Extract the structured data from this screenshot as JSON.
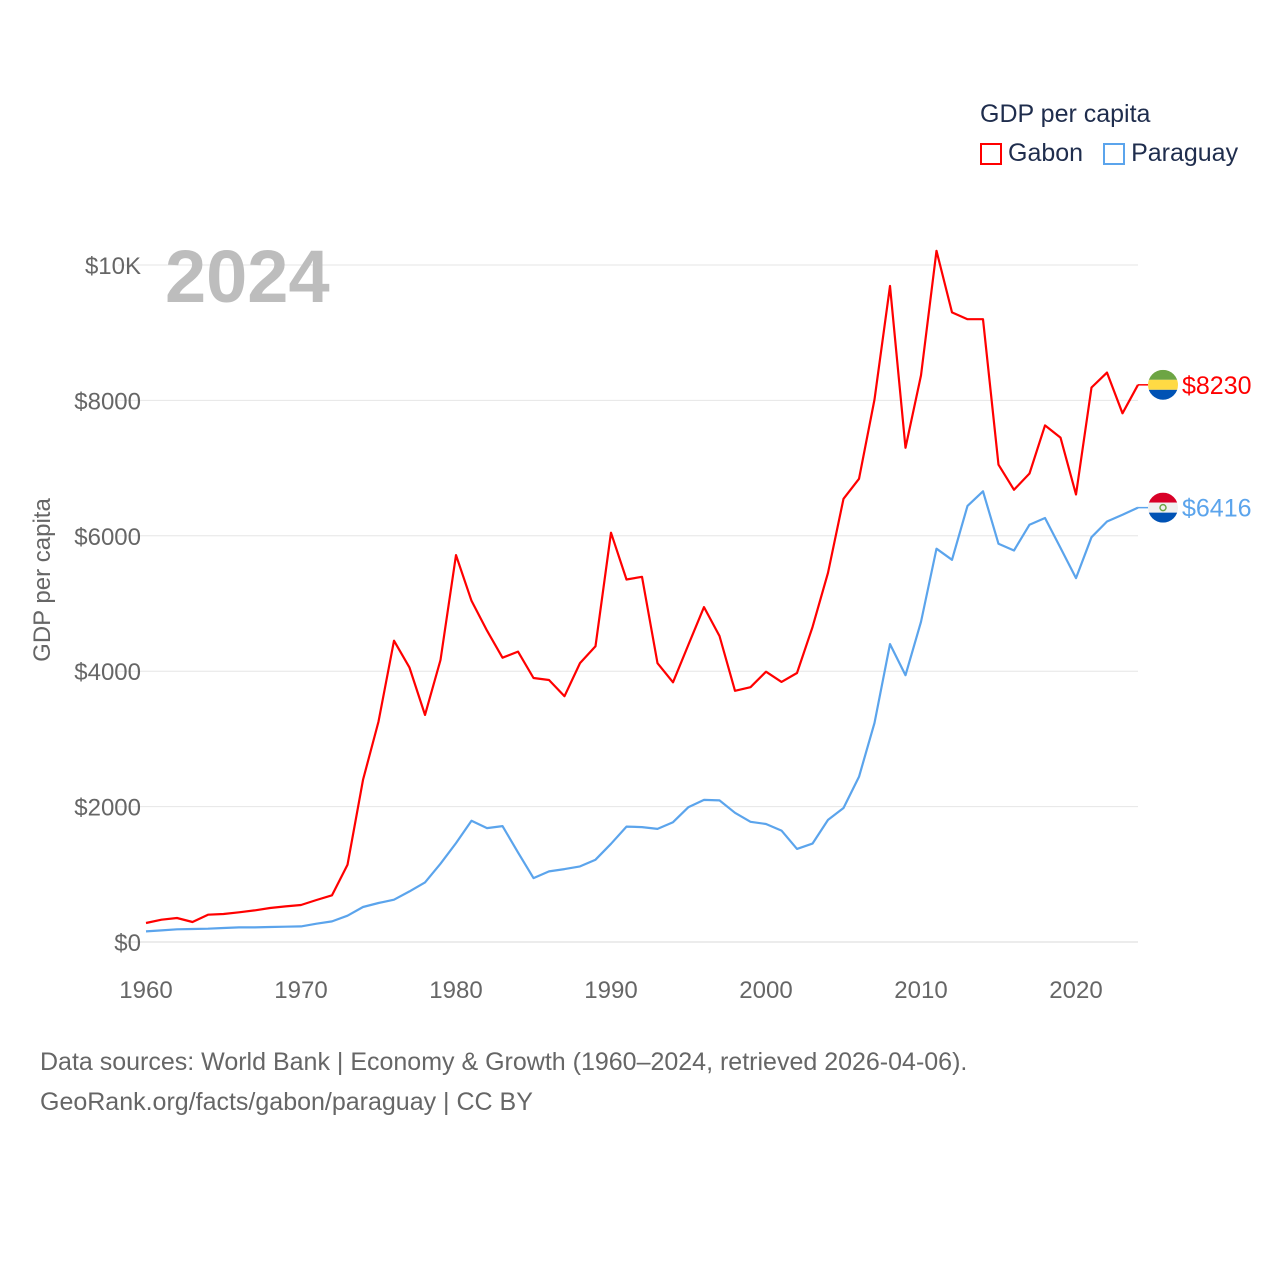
{
  "chart_data": {
    "type": "line",
    "title": "GDP per capita",
    "year_label": "2024",
    "xlabel": "",
    "ylabel": "GDP per capita",
    "xlim": [
      1960,
      2024
    ],
    "ylim": [
      0,
      10000
    ],
    "grid": true,
    "legend_placement": "top-right",
    "x_ticks": [
      1960,
      1970,
      1980,
      1990,
      2000,
      2010,
      2020
    ],
    "x_tick_labels": [
      "1960",
      "1970",
      "1980",
      "1990",
      "2000",
      "2010",
      "2020"
    ],
    "y_ticks": [
      0,
      2000,
      4000,
      6000,
      8000,
      10000
    ],
    "y_tick_labels": [
      "$0",
      "$2000",
      "$4000",
      "$6000",
      "$8000",
      "$10K"
    ],
    "x": [
      1960,
      1961,
      1962,
      1963,
      1964,
      1965,
      1966,
      1967,
      1968,
      1969,
      1970,
      1971,
      1972,
      1973,
      1974,
      1975,
      1976,
      1977,
      1978,
      1979,
      1980,
      1981,
      1982,
      1983,
      1984,
      1985,
      1986,
      1987,
      1988,
      1989,
      1990,
      1991,
      1992,
      1993,
      1994,
      1995,
      1996,
      1997,
      1998,
      1999,
      2000,
      2001,
      2002,
      2003,
      2004,
      2005,
      2006,
      2007,
      2008,
      2009,
      2010,
      2011,
      2012,
      2013,
      2014,
      2015,
      2016,
      2017,
      2018,
      2019,
      2020,
      2021,
      2022,
      2023,
      2024
    ],
    "series": [
      {
        "name": "Gabon",
        "color": "#ff0000",
        "end_label": "$8230",
        "values": [
          280,
          330,
          354,
          295,
          403,
          413,
          438,
          467,
          502,
          526,
          546,
          620,
          690,
          1141,
          2395,
          3256,
          4451,
          4053,
          3354,
          4165,
          5715,
          5040,
          4600,
          4200,
          4290,
          3900,
          3870,
          3630,
          4120,
          4370,
          6046,
          5355,
          5395,
          4118,
          3836,
          4395,
          4947,
          4520,
          3710,
          3763,
          3993,
          3842,
          3974,
          4651,
          5454,
          6546,
          6842,
          8013,
          9690,
          7300,
          8370,
          10210,
          9300,
          9200,
          9200,
          7050,
          6680,
          6920,
          7630,
          7450,
          6610,
          8190,
          8410,
          7810,
          8230
        ]
      },
      {
        "name": "Paraguay",
        "color": "#5ba4ec",
        "end_label": "$6416",
        "values": [
          157,
          172,
          187,
          192,
          197,
          207,
          216,
          216,
          221,
          226,
          231,
          270,
          305,
          389,
          517,
          576,
          625,
          748,
          880,
          1156,
          1461,
          1790,
          1682,
          1712,
          1323,
          944,
          1043,
          1077,
          1116,
          1215,
          1450,
          1704,
          1697,
          1671,
          1770,
          1993,
          2099,
          2092,
          1908,
          1776,
          1743,
          1645,
          1375,
          1454,
          1803,
          1980,
          2440,
          3237,
          4401,
          3941,
          4730,
          5809,
          5645,
          6441,
          6658,
          5882,
          5783,
          6164,
          6263,
          5822,
          5375,
          5980,
          6211,
          6310,
          6416
        ]
      }
    ]
  },
  "legend": {
    "title": "GDP per capita",
    "items": [
      "Gabon",
      "Paraguay"
    ]
  },
  "footer": {
    "line1": "Data sources: World Bank | Economy & Growth (1960–2024, retrieved 2026-04-06).",
    "line2": "GeoRank.org/facts/gabon/paraguay | CC BY"
  }
}
